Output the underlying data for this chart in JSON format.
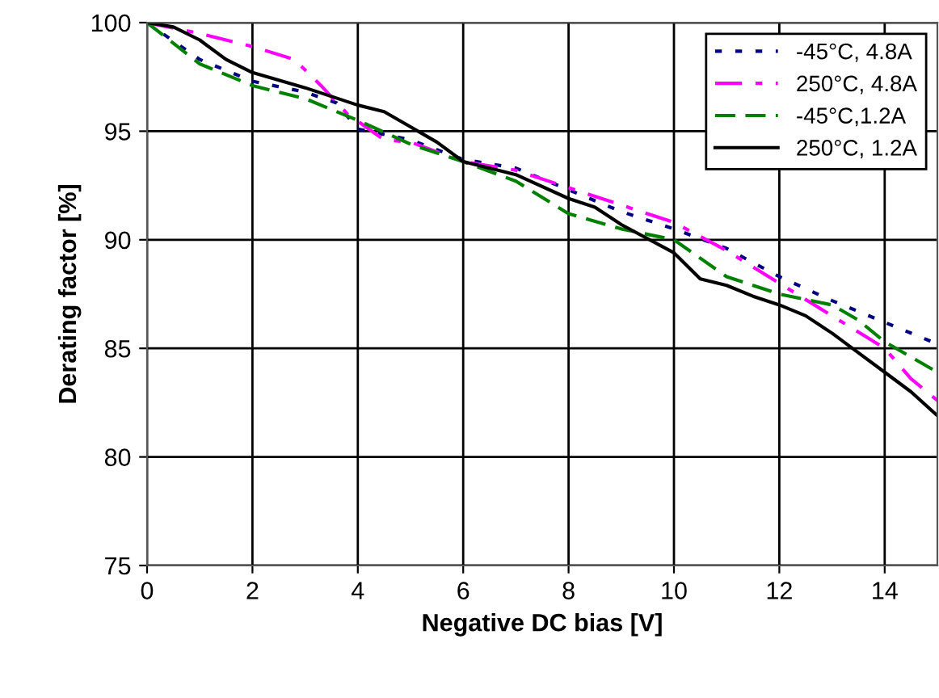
{
  "chart_data": {
    "type": "line",
    "xlabel": "Negative DC bias [V]",
    "ylabel": "Derating factor [%]",
    "xlim": [
      0,
      15
    ],
    "xticks": [
      0,
      2,
      4,
      6,
      8,
      10,
      12,
      14
    ],
    "ylim": [
      75,
      100
    ],
    "yticks": [
      75,
      80,
      85,
      90,
      95,
      100
    ],
    "grid": true,
    "legend": "top right",
    "series": [
      {
        "name": "-45°C, 4.8A",
        "color": "#000080",
        "line_style": "dotted",
        "x": [
          0,
          1,
          2,
          3,
          3.6,
          4,
          5,
          6,
          7,
          8,
          9,
          10,
          11,
          12,
          13,
          14,
          15
        ],
        "values": [
          100,
          98.3,
          97.3,
          96.8,
          96.3,
          95.1,
          94.6,
          93.7,
          93.3,
          92.3,
          91.3,
          90.5,
          89.6,
          88.3,
          87.2,
          86.2,
          85.2
        ]
      },
      {
        "name": "250°C, 4.8A",
        "color": "#ff00ff",
        "line_style": "dashdot",
        "x": [
          0,
          1,
          2,
          2.8,
          3.3,
          3.8,
          4.5,
          5,
          6,
          7,
          8,
          9,
          10,
          11,
          12,
          13,
          14,
          14.5,
          15
        ],
        "values": [
          100,
          99.5,
          98.9,
          98.3,
          97.1,
          95.8,
          94.6,
          94.5,
          93.6,
          93.2,
          92.4,
          91.6,
          90.8,
          89.5,
          88,
          86.5,
          85,
          83.6,
          82.6
        ]
      },
      {
        "name": "-45°C,1.2A",
        "color": "#008000",
        "line_style": "dashed",
        "x": [
          0,
          1,
          2,
          3,
          4,
          5,
          6,
          7,
          8,
          9,
          10,
          11,
          12,
          13,
          13.5,
          14,
          15
        ],
        "values": [
          100,
          98.1,
          97.1,
          96.5,
          95.5,
          94.4,
          93.6,
          92.7,
          91.2,
          90.5,
          90,
          88.3,
          87.5,
          87,
          86.3,
          85.3,
          83.9
        ]
      },
      {
        "name": "250°C, 1.2A",
        "color": "#000000",
        "line_style": "solid",
        "x": [
          0,
          0.5,
          1,
          1.5,
          2,
          3,
          4,
          4.5,
          5,
          5.5,
          6,
          7,
          8,
          8.5,
          9,
          10,
          10.5,
          11,
          11.5,
          12,
          12.5,
          13,
          13.5,
          14,
          14.5,
          15
        ],
        "values": [
          100,
          99.8,
          99.2,
          98.3,
          97.7,
          97,
          96.2,
          95.9,
          95.2,
          94.5,
          93.6,
          93,
          91.9,
          91.5,
          90.7,
          89.4,
          88.2,
          87.9,
          87.4,
          87,
          86.5,
          85.7,
          84.8,
          83.9,
          83,
          81.9
        ]
      }
    ]
  }
}
